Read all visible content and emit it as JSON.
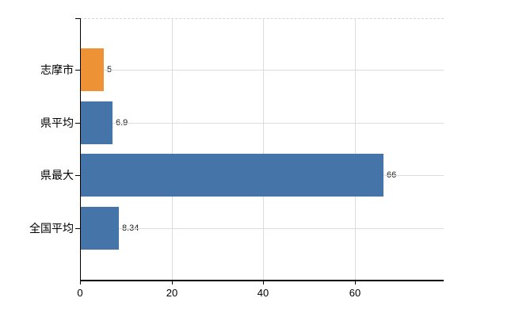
{
  "chart": {
    "background_color": "#ffffff",
    "axis_color": "#000000",
    "gridline_color": "#d9ded9",
    "top_border_color": "#d4d4d4",
    "text_color": "#000000"
  },
  "chart_data": {
    "type": "bar",
    "orientation": "horizontal",
    "title": "",
    "xlabel": "",
    "ylabel": "",
    "categories": [
      "志摩市",
      "県平均",
      "県最大",
      "全国平均"
    ],
    "values": [
      5,
      6.9,
      66,
      8.34
    ],
    "value_labels": [
      "5",
      "6.9",
      "66",
      "8.34"
    ],
    "bar_colors": [
      "#ee9335",
      "#4574a9",
      "#4574a9",
      "#4574a9"
    ],
    "highlight_color": "#ee9335",
    "default_color": "#4574a9",
    "x_ticks": [
      0,
      20,
      40,
      60
    ],
    "x_tick_labels": [
      "0",
      "20",
      "40",
      "60"
    ],
    "xlim": [
      0,
      79.4
    ],
    "grid": true,
    "legend": false
  }
}
